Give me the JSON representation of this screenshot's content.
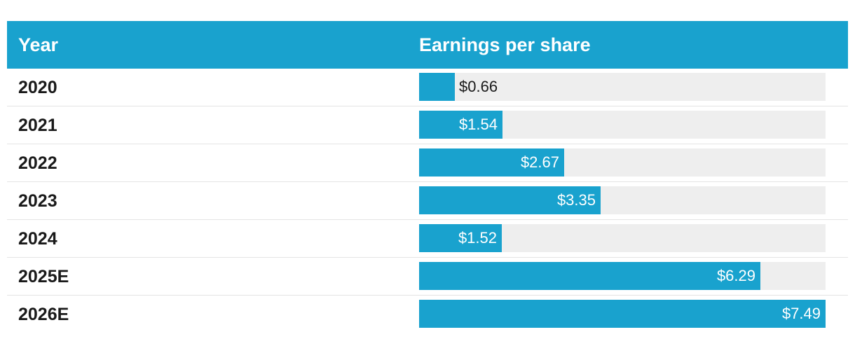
{
  "header": {
    "year_label": "Year",
    "eps_label": "Earnings per share"
  },
  "colors": {
    "header_bg": "#19a2ce",
    "bar_fill": "#19a2ce",
    "bar_track": "#eeeeee"
  },
  "chart_data": {
    "type": "table",
    "columns": [
      "Year",
      "Earnings per share"
    ],
    "categories": [
      "2020",
      "2021",
      "2022",
      "2023",
      "2024",
      "2025E",
      "2026E"
    ],
    "values": [
      0.66,
      1.54,
      2.67,
      3.35,
      1.52,
      6.29,
      7.49
    ],
    "value_labels": [
      "$0.66",
      "$1.54",
      "$2.67",
      "$3.35",
      "$1.52",
      "$6.29",
      "$7.49"
    ],
    "xlim": [
      0,
      7.49
    ]
  }
}
